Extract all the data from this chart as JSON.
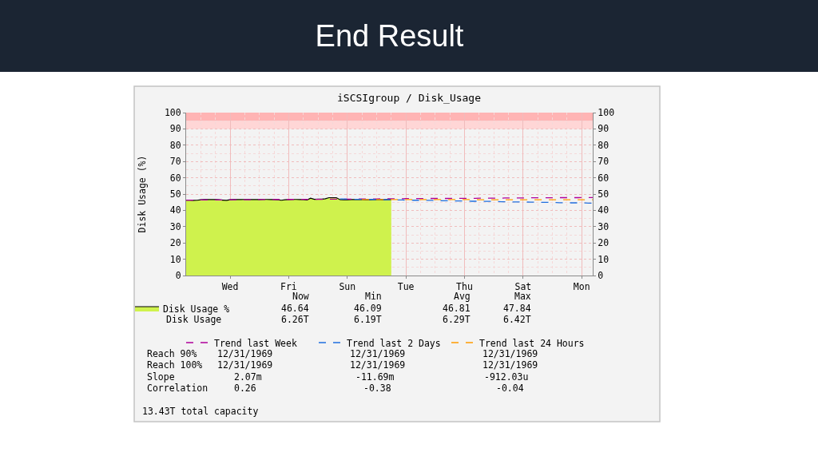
{
  "chart_data": {
    "type": "area",
    "title": "End Result",
    "subtitle": "iSCSIgroup / Disk_Usage",
    "ylabel": "Disk Usage (%)",
    "categories": [
      null,
      null,
      null,
      null,
      null,
      null,
      null,
      null,
      null,
      null,
      null,
      null,
      "Wed",
      null,
      null,
      null,
      null,
      null,
      null,
      null,
      null,
      null,
      null,
      null,
      null,
      null,
      null,
      null,
      "Fri",
      null,
      null,
      null,
      null,
      null,
      null,
      null,
      null,
      null,
      null,
      null,
      null,
      null,
      null,
      null,
      "Sun",
      null,
      null,
      null,
      null,
      null,
      null,
      null,
      null,
      null,
      null,
      null,
      null,
      null,
      null,
      null,
      "Tue",
      null,
      null,
      null,
      null,
      null,
      null,
      null,
      null,
      null,
      null,
      null,
      null,
      null,
      null,
      null,
      "Thu",
      null,
      null,
      null,
      null,
      null,
      null,
      null,
      null,
      null,
      null,
      null,
      null,
      null,
      null,
      null,
      "Sat",
      null,
      null,
      null,
      null,
      null,
      null,
      null,
      null,
      null,
      null,
      null,
      null,
      null,
      null,
      null,
      "Mon",
      null,
      null,
      null
    ],
    "ylim": [
      0,
      100
    ],
    "yticks": [
      0,
      10,
      20,
      30,
      40,
      50,
      60,
      70,
      80,
      90,
      100
    ],
    "y2lim": [
      0,
      100
    ],
    "y2ticks": [
      0,
      10,
      20,
      30,
      40,
      50,
      60,
      70,
      80,
      90,
      100
    ],
    "bands": [
      {
        "axis": "y",
        "from": 90,
        "to": 95,
        "color": "#ffd6d6"
      },
      {
        "axis": "y",
        "from": 95,
        "to": 100,
        "color": "#ffb4b4"
      }
    ],
    "grid": true,
    "legend": "bottom",
    "series": [
      {
        "name": "Disk Usage %",
        "color": "#cff24d",
        "values": [
          46.3,
          46.2,
          46.1,
          46.2,
          46.5,
          46.6,
          46.6,
          46.6,
          46.6,
          46.5,
          46.3,
          46.1,
          46.5,
          46.6,
          46.6,
          46.6,
          46.7,
          46.7,
          46.6,
          46.6,
          46.6,
          46.7,
          46.7,
          46.6,
          46.6,
          46.5,
          46.2,
          46.5,
          46.6,
          46.7,
          46.7,
          46.6,
          46.6,
          46.4,
          47.5,
          46.8,
          46.9,
          46.9,
          47.1,
          47.8,
          47.8,
          47.8,
          46.6,
          46.5,
          46.5,
          46.6,
          46.6,
          46.6,
          46.6,
          46.5,
          46.5,
          46.6,
          46.6,
          46.6,
          46.5,
          46.6,
          46.6,
          null,
          null,
          null,
          null,
          null,
          null,
          null,
          null,
          null,
          null,
          null,
          null,
          null,
          null,
          null,
          null,
          null,
          null,
          null,
          null,
          null,
          null,
          null,
          null,
          null,
          null,
          null,
          null,
          null,
          null,
          null,
          null,
          null,
          null,
          null,
          null,
          null,
          null,
          null,
          null,
          null,
          null,
          null,
          null,
          null,
          null,
          null,
          null,
          null,
          null,
          null,
          null,
          null,
          null,
          null
        ]
      },
      {
        "name": "Trend last Week",
        "type": "line",
        "color": "#b0009a",
        "line_style": "dashed",
        "values": [
          46.3,
          46.3,
          46.3,
          46.3,
          46.4,
          46.4,
          46.4,
          46.4,
          46.4,
          46.4,
          46.4,
          46.5,
          46.5,
          46.5,
          46.5,
          46.5,
          46.5,
          46.5,
          46.6,
          46.6,
          46.6,
          46.6,
          46.6,
          46.6,
          46.6,
          46.7,
          46.7,
          46.7,
          46.7,
          46.7,
          46.7,
          46.7,
          46.8,
          46.8,
          46.8,
          46.8,
          46.8,
          46.8,
          46.8,
          46.9,
          46.9,
          46.9,
          46.9,
          46.9,
          46.9,
          46.9,
          47.0,
          47.0,
          47.0,
          47.0,
          47.0,
          47.0,
          47.0,
          47.1,
          47.1,
          47.1,
          47.1,
          47.1,
          47.1,
          47.1,
          47.2,
          47.2,
          47.2,
          47.2,
          47.2,
          47.2,
          47.3,
          47.3,
          47.3,
          47.3,
          47.3,
          47.3,
          47.3,
          47.4,
          47.4,
          47.4,
          47.4,
          47.4,
          47.4,
          47.4,
          47.5,
          47.5,
          47.5,
          47.5,
          47.5,
          47.5,
          47.5,
          47.6,
          47.6,
          47.6,
          47.6,
          47.6,
          47.6,
          47.6,
          47.7,
          47.7,
          47.7,
          47.7,
          47.7,
          47.7,
          47.7,
          47.8,
          47.8,
          47.8,
          47.8,
          47.8,
          47.8,
          47.8,
          47.9,
          47.9,
          47.9,
          47.9
        ]
      },
      {
        "name": "Trend last 2 Days",
        "type": "line",
        "color": "#1f6fe0",
        "line_style": "dashed",
        "values": [
          null,
          null,
          null,
          null,
          null,
          null,
          null,
          null,
          null,
          null,
          null,
          null,
          null,
          null,
          null,
          null,
          null,
          null,
          null,
          null,
          null,
          null,
          null,
          null,
          null,
          null,
          null,
          null,
          null,
          null,
          null,
          null,
          null,
          null,
          null,
          null,
          null,
          null,
          null,
          null,
          null,
          null,
          47.0,
          47.0,
          46.9,
          46.9,
          46.8,
          46.8,
          46.8,
          46.7,
          46.7,
          46.7,
          46.6,
          46.6,
          46.5,
          46.5,
          46.5,
          46.4,
          46.4,
          46.4,
          46.3,
          46.3,
          46.2,
          46.2,
          46.2,
          46.1,
          46.1,
          46.1,
          46.0,
          46.0,
          45.9,
          45.9,
          45.9,
          45.8,
          45.8,
          45.8,
          45.7,
          45.7,
          45.6,
          45.6,
          45.6,
          45.5,
          45.5,
          45.5,
          45.4,
          45.4,
          45.3,
          45.3,
          45.3,
          45.2,
          45.2,
          45.2,
          45.1,
          45.1,
          45.0,
          45.0,
          45.0,
          44.9,
          44.9,
          44.9,
          44.8,
          44.8,
          44.7,
          44.7,
          44.7,
          44.6,
          44.6,
          44.6,
          44.5,
          44.5,
          44.4,
          44.4
        ]
      },
      {
        "name": "Trend last 24 Hours",
        "type": "line",
        "color": "#ff9c00",
        "line_style": "dashed",
        "values": [
          null,
          null,
          null,
          null,
          null,
          null,
          null,
          null,
          null,
          null,
          null,
          null,
          null,
          null,
          null,
          null,
          null,
          null,
          null,
          null,
          null,
          null,
          null,
          null,
          null,
          null,
          null,
          null,
          null,
          null,
          null,
          null,
          null,
          null,
          null,
          null,
          null,
          null,
          null,
          null,
          null,
          null,
          null,
          null,
          null,
          null,
          null,
          null,
          46.6,
          46.6,
          46.6,
          46.6,
          46.6,
          46.6,
          46.6,
          46.6,
          46.6,
          46.6,
          46.6,
          46.6,
          46.6,
          46.6,
          46.6,
          46.6,
          46.6,
          46.6,
          46.6,
          46.6,
          46.6,
          46.6,
          46.6,
          46.6,
          46.6,
          46.6,
          46.6,
          46.6,
          46.6,
          46.6,
          46.6,
          46.6,
          46.5,
          46.5,
          46.5,
          46.5,
          46.5,
          46.5,
          46.5,
          46.5,
          46.5,
          46.5,
          46.5,
          46.5,
          46.5,
          46.5,
          46.5,
          46.5,
          46.5,
          46.5,
          46.5,
          46.5,
          46.5,
          46.5,
          46.5,
          46.5,
          46.5,
          46.5,
          46.5,
          46.5,
          46.5,
          46.5,
          46.5,
          46.5
        ]
      }
    ],
    "annotations": [
      "Now",
      "Min",
      "Avg",
      "Max",
      "46.64",
      "46.09",
      "46.81",
      "47.84",
      "Disk Usage",
      "6.26T",
      "6.19T",
      "6.29T",
      "6.42T",
      "Reach 90%",
      "12/31/1969",
      "12/31/1969",
      "12/31/1969",
      "Reach 100%",
      "12/31/1969",
      "12/31/1969",
      "12/31/1969",
      "Slope",
      "2.07m",
      "-11.69m",
      "-912.03u",
      "Correlation",
      "0.26",
      "-0.38",
      "-0.04",
      "13.43T total capacity"
    ]
  }
}
